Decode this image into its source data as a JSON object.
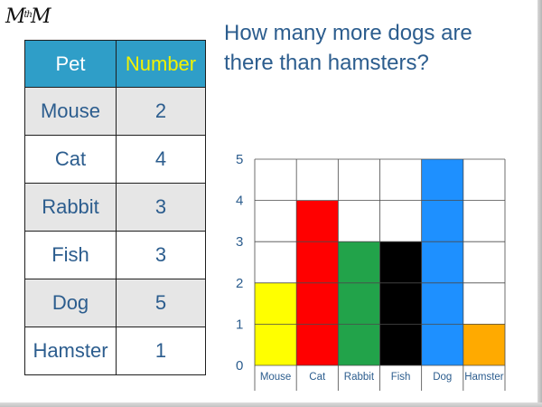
{
  "logo": {
    "left": "M",
    "small": "th",
    "right": "M"
  },
  "question": "How many more dogs are there than hamsters?",
  "table": {
    "headers": [
      "Pet",
      "Number"
    ],
    "rows": [
      [
        "Mouse",
        "2"
      ],
      [
        "Cat",
        "4"
      ],
      [
        "Rabbit",
        "3"
      ],
      [
        "Fish",
        "3"
      ],
      [
        "Dog",
        "5"
      ],
      [
        "Hamster",
        "1"
      ]
    ]
  },
  "chart_data": {
    "type": "bar",
    "categories": [
      "Mouse",
      "Cat",
      "Rabbit",
      "Fish",
      "Dog",
      "Hamster"
    ],
    "values": [
      2,
      4,
      3,
      3,
      5,
      1
    ],
    "colors": [
      "#ffff00",
      "#ff0000",
      "#22a34a",
      "#000000",
      "#1e90ff",
      "#ffaa00"
    ],
    "title": "",
    "xlabel": "",
    "ylabel": "",
    "ylim": [
      0,
      5
    ],
    "yticks": [
      "0",
      "1",
      "2",
      "3",
      "4",
      "5"
    ],
    "grid": true
  }
}
